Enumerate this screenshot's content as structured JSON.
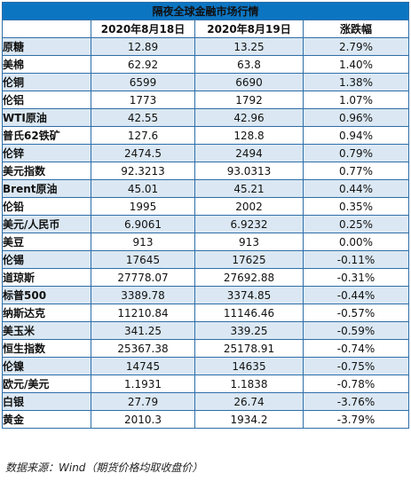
{
  "title": "隔夜全球金融市场行情",
  "headers": [
    "",
    "2020年8月18日",
    "2020年8月19日",
    "涨跌幅"
  ],
  "rows": [
    {
      "name": "原糖",
      "d1": "12.89",
      "d2": "13.25",
      "chg": "2.79%"
    },
    {
      "name": "美棉",
      "d1": "62.92",
      "d2": "63.8",
      "chg": "1.40%"
    },
    {
      "name": "伦铜",
      "d1": "6599",
      "d2": "6690",
      "chg": "1.38%"
    },
    {
      "name": "伦铝",
      "d1": "1773",
      "d2": "1792",
      "chg": "1.07%"
    },
    {
      "name": "WTI原油",
      "d1": "42.55",
      "d2": "42.96",
      "chg": "0.96%"
    },
    {
      "name": "普氏62铁矿",
      "d1": "127.6",
      "d2": "128.8",
      "chg": "0.94%"
    },
    {
      "name": "伦锌",
      "d1": "2474.5",
      "d2": "2494",
      "chg": "0.79%"
    },
    {
      "name": "美元指数",
      "d1": "92.3213",
      "d2": "93.0313",
      "chg": "0.77%"
    },
    {
      "name": "Brent原油",
      "d1": "45.01",
      "d2": "45.21",
      "chg": "0.44%"
    },
    {
      "name": "伦铅",
      "d1": "1995",
      "d2": "2002",
      "chg": "0.35%"
    },
    {
      "name": "美元/人民币",
      "d1": "6.9061",
      "d2": "6.9232",
      "chg": "0.25%"
    },
    {
      "name": "美豆",
      "d1": "913",
      "d2": "913",
      "chg": "0.00%"
    },
    {
      "name": "伦锡",
      "d1": "17645",
      "d2": "17625",
      "chg": "-0.11%"
    },
    {
      "name": "道琼斯",
      "d1": "27778.07",
      "d2": "27692.88",
      "chg": "-0.31%"
    },
    {
      "name": "标普500",
      "d1": "3389.78",
      "d2": "3374.85",
      "chg": "-0.44%"
    },
    {
      "name": "纳斯达克",
      "d1": "11210.84",
      "d2": "11146.46",
      "chg": "-0.57%"
    },
    {
      "name": "美玉米",
      "d1": "341.25",
      "d2": "339.25",
      "chg": "-0.59%"
    },
    {
      "name": "恒生指数",
      "d1": "25367.38",
      "d2": "25178.91",
      "chg": "-0.74%"
    },
    {
      "name": "伦镍",
      "d1": "14745",
      "d2": "14635",
      "chg": "-0.75%"
    },
    {
      "name": "欧元/美元",
      "d1": "1.1931",
      "d2": "1.1838",
      "chg": "-0.78%"
    },
    {
      "name": "白银",
      "d1": "27.79",
      "d2": "26.74",
      "chg": "-3.76%"
    },
    {
      "name": "黄金",
      "d1": "2010.3",
      "d2": "1934.2",
      "chg": "-3.79%"
    }
  ],
  "source": "数据来源：Wind（期货价格均取收盘价）"
}
